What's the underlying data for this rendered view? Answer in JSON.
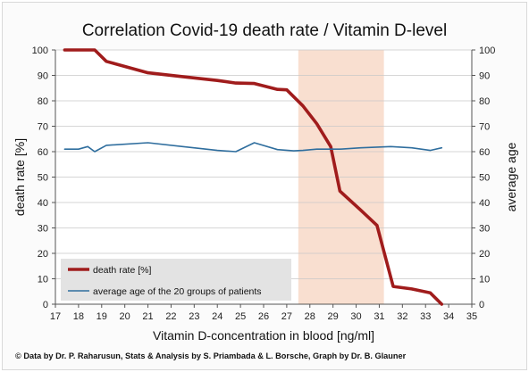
{
  "chart_data": {
    "type": "line",
    "title": "Correlation Covid-19 death rate / Vitamin D-level",
    "xlabel": "Vitamin D-concentration in blood [ng/ml]",
    "ylabel": "death rate [%]",
    "y2label": "average age",
    "xlim": [
      17,
      35
    ],
    "ylim": [
      0,
      100
    ],
    "y2lim": [
      0,
      100
    ],
    "xticks": [
      "17",
      "18",
      "19",
      "20",
      "21",
      "22",
      "23",
      "24",
      "25",
      "26",
      "27",
      "28",
      "29",
      "30",
      "31",
      "32",
      "33",
      "34",
      "35"
    ],
    "yticks": [
      "0",
      "10",
      "20",
      "30",
      "40",
      "50",
      "60",
      "70",
      "80",
      "90",
      "100"
    ],
    "y2ticks": [
      "0",
      "10",
      "20",
      "30",
      "40",
      "50",
      "60",
      "70",
      "80",
      "90",
      "100"
    ],
    "grid": true,
    "legend_position": "bottom-left",
    "highlight_band": {
      "x": [
        27.5,
        31.2
      ],
      "color": "#f8d9c8"
    },
    "series": [
      {
        "name": "death rate [%]",
        "axis": "left",
        "color": "#a01c1c",
        "x": [
          17.4,
          18.7,
          19.2,
          21.0,
          22.5,
          24.0,
          24.8,
          25.6,
          26.6,
          27.0,
          27.7,
          28.3,
          28.9,
          29.3,
          30.2,
          30.9,
          31.6,
          32.4,
          33.2,
          33.7
        ],
        "y": [
          100,
          100,
          95.5,
          91,
          89.5,
          88,
          87,
          86.8,
          84.5,
          84.3,
          78,
          71,
          62,
          44.5,
          37,
          31,
          7,
          6,
          4.5,
          0
        ]
      },
      {
        "name": "average age of the 20 groups of patients",
        "axis": "right",
        "color": "#2f6e9e",
        "x": [
          17.4,
          18.0,
          18.4,
          18.7,
          19.2,
          21.0,
          22.5,
          24.0,
          24.8,
          25.6,
          26.6,
          27.3,
          27.7,
          28.3,
          29.3,
          30.2,
          31.5,
          32.4,
          33.2,
          33.7
        ],
        "y": [
          61,
          61,
          62,
          60,
          62.5,
          63.5,
          62,
          60.5,
          60,
          63.5,
          60.8,
          60.3,
          60.5,
          61,
          61,
          61.5,
          62,
          61.5,
          60.5,
          61.5
        ]
      }
    ]
  },
  "credit": "© Data by Dr. P. Raharusun, Stats & Analysis by S. Priambada & L. Borsche, Graph by Dr. B. Glauner"
}
